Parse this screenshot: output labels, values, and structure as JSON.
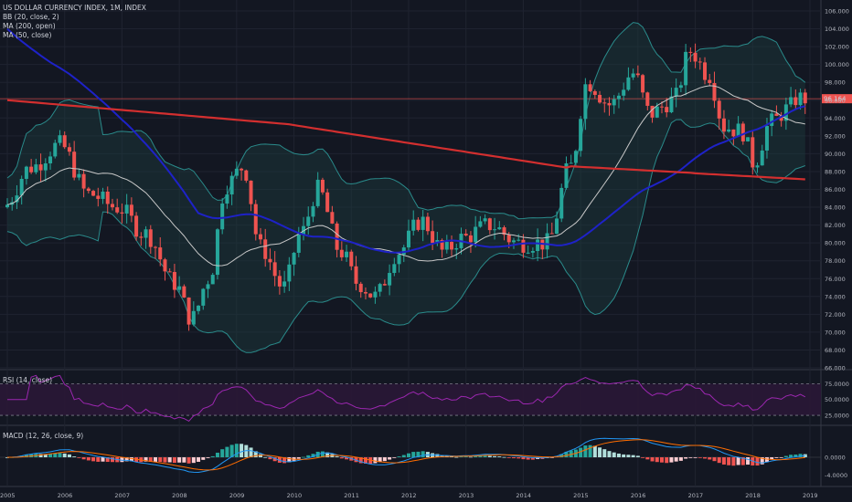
{
  "main": {
    "title": "US DOLLAR CURRENCY INDEX, 1M, INDEX",
    "indicators": [
      "BB (20, close, 2)",
      "MA (200, open)",
      "MA (50, close)"
    ],
    "price_tag": "96.164",
    "yticks": [
      "106.000",
      "104.000",
      "102.000",
      "100.000",
      "98.000",
      "96.000",
      "94.000",
      "92.000",
      "90.000",
      "88.000",
      "86.000",
      "84.000",
      "82.000",
      "80.000",
      "78.000",
      "76.000",
      "74.000",
      "72.000",
      "70.000",
      "68.000",
      "66.000"
    ]
  },
  "rsi": {
    "label": "RSI (14, close)",
    "yticks": [
      "75.0000",
      "50.0000",
      "25.0000"
    ]
  },
  "macd": {
    "label": "MACD (12, 26, close, 9)",
    "yticks": [
      "0.0000",
      "-4.0000"
    ]
  },
  "xaxis": {
    "labels": [
      "2005",
      "2006",
      "2007",
      "2008",
      "2009",
      "2010",
      "2011",
      "2012",
      "2013",
      "2014",
      "2015",
      "2016",
      "2017",
      "2018",
      "2019"
    ]
  },
  "colors": {
    "background": "#131722",
    "up": "#26a69a",
    "down": "#ef5350",
    "bb_band": "#2a8b8b",
    "bb_basis": "#c8c8c8",
    "ma200": "#d32f2f",
    "ma50": "#1e22c8",
    "rsi": "#9c27b0",
    "macd": "#2196f3",
    "signal": "#ff6d00"
  },
  "chart_data": {
    "type": "candlestick",
    "title": "US DOLLAR CURRENCY INDEX, 1M, INDEX",
    "ylim": [
      66,
      106
    ],
    "last_price": 96.164,
    "series_close": [
      [
        2005.0,
        84.0
      ],
      [
        2005.5,
        88.5
      ],
      [
        2006.0,
        91.0
      ],
      [
        2006.5,
        85.5
      ],
      [
        2007.0,
        84.0
      ],
      [
        2007.5,
        81.0
      ],
      [
        2008.0,
        75.5
      ],
      [
        2008.3,
        71.5
      ],
      [
        2008.6,
        76.0
      ],
      [
        2008.9,
        86.5
      ],
      [
        2009.2,
        88.5
      ],
      [
        2009.5,
        79.5
      ],
      [
        2009.9,
        75.0
      ],
      [
        2010.2,
        81.0
      ],
      [
        2010.5,
        86.0
      ],
      [
        2010.9,
        79.0
      ],
      [
        2011.2,
        75.5
      ],
      [
        2011.5,
        74.0
      ],
      [
        2011.9,
        79.0
      ],
      [
        2012.3,
        82.5
      ],
      [
        2012.7,
        79.0
      ],
      [
        2013.0,
        80.5
      ],
      [
        2013.5,
        82.0
      ],
      [
        2014.0,
        80.0
      ],
      [
        2014.5,
        80.0
      ],
      [
        2014.9,
        88.5
      ],
      [
        2015.2,
        98.0
      ],
      [
        2015.6,
        95.5
      ],
      [
        2016.0,
        99.0
      ],
      [
        2016.3,
        94.5
      ],
      [
        2016.7,
        96.0
      ],
      [
        2017.0,
        101.5
      ],
      [
        2017.3,
        99.0
      ],
      [
        2017.6,
        93.0
      ],
      [
        2017.9,
        92.5
      ],
      [
        2018.1,
        89.0
      ],
      [
        2018.4,
        93.5
      ],
      [
        2018.7,
        95.0
      ],
      [
        2018.85,
        96.2
      ]
    ],
    "moving_averages": [
      {
        "name": "MA (200, open)"
      },
      {
        "name": "MA (50, close)"
      }
    ]
  }
}
